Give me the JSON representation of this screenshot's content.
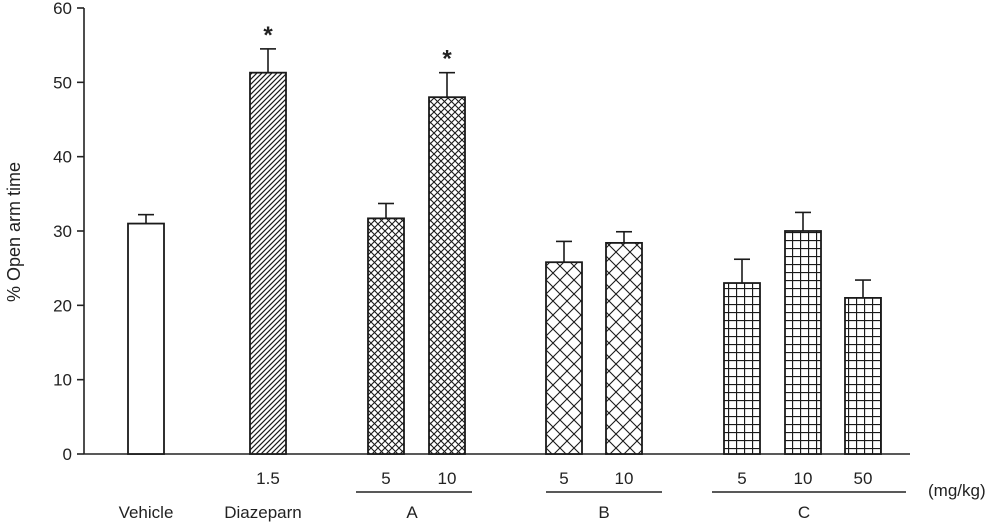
{
  "chart_data": {
    "type": "bar",
    "title": "",
    "xlabel": "",
    "ylabel": "% Open arm time",
    "ylim": [
      0,
      60
    ],
    "yticks": [
      0,
      10,
      20,
      30,
      40,
      50,
      60
    ],
    "grid": false,
    "legend": "none",
    "dose_unit": "(mg/kg)",
    "bars": [
      {
        "group": "Vehicle",
        "dose": "",
        "value": 31.0,
        "error": 1.2,
        "pattern": "none",
        "significant": false
      },
      {
        "group": "Diazeparn",
        "dose": "1.5",
        "value": 51.3,
        "error": 3.2,
        "pattern": "diagonal",
        "significant": true
      },
      {
        "group": "A",
        "dose": "5",
        "value": 31.7,
        "error": 2.0,
        "pattern": "fine-cross",
        "significant": false
      },
      {
        "group": "A",
        "dose": "10",
        "value": 48.0,
        "error": 3.3,
        "pattern": "fine-cross",
        "significant": true
      },
      {
        "group": "B",
        "dose": "5",
        "value": 25.8,
        "error": 2.8,
        "pattern": "wide-cross",
        "significant": false
      },
      {
        "group": "B",
        "dose": "10",
        "value": 28.4,
        "error": 1.5,
        "pattern": "wide-cross",
        "significant": false
      },
      {
        "group": "C",
        "dose": "5",
        "value": 23.0,
        "error": 3.2,
        "pattern": "grid",
        "significant": false
      },
      {
        "group": "C",
        "dose": "10",
        "value": 30.0,
        "error": 2.5,
        "pattern": "grid",
        "significant": false
      },
      {
        "group": "C",
        "dose": "50",
        "value": 21.0,
        "error": 2.4,
        "pattern": "grid",
        "significant": false
      }
    ],
    "groups": [
      {
        "label": "Vehicle",
        "underline": false
      },
      {
        "label": "Diazeparn",
        "underline": false
      },
      {
        "label": "A",
        "underline": true
      },
      {
        "label": "B",
        "underline": true
      },
      {
        "label": "C",
        "underline": true
      }
    ],
    "significance_marker": "*"
  },
  "colors": {
    "axis": "#222222",
    "bar_stroke": "#1a1a1a",
    "bar_fill": "#ffffff",
    "pattern": "#1a1a1a"
  }
}
